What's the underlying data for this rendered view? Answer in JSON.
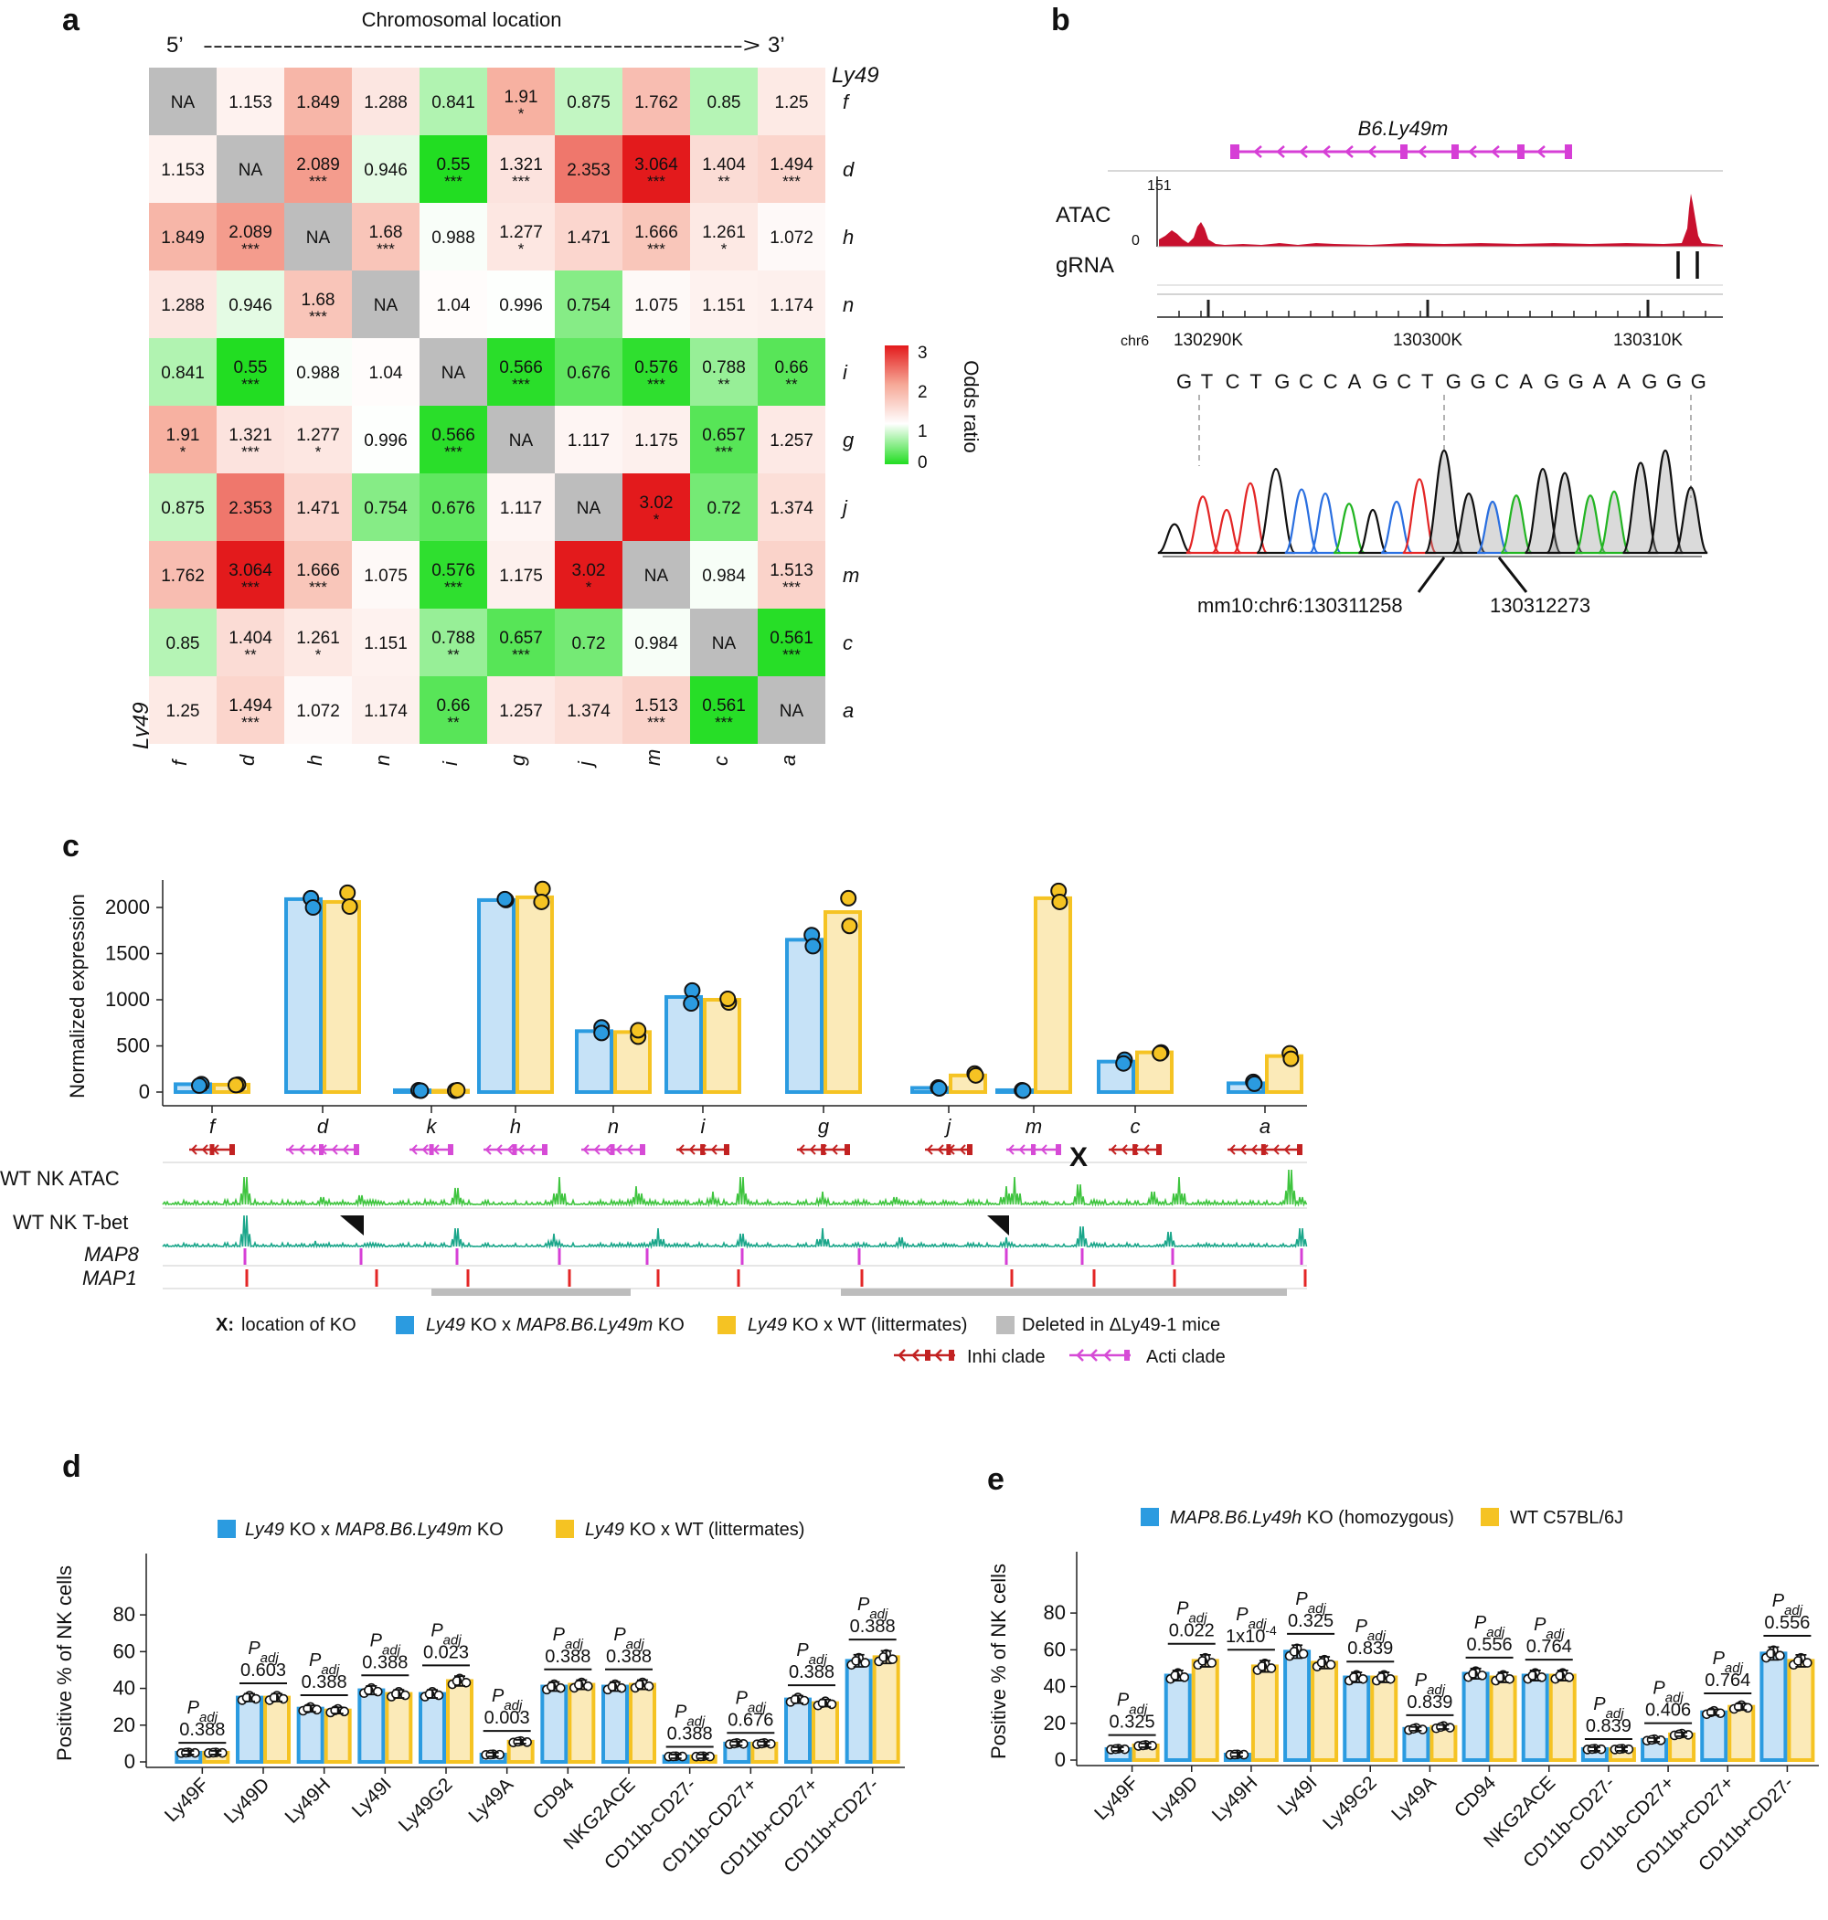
{
  "panels": {
    "a": "a",
    "b": "b",
    "c": "c",
    "d": "d",
    "e": "e"
  },
  "a": {
    "title": "Chromosomal location",
    "five": "5’",
    "three": "3’",
    "arrow": "------------------------------------------------------>",
    "axis_label": "Ly49",
    "genes": [
      "f",
      "d",
      "h",
      "n",
      "i",
      "g",
      "j",
      "m",
      "c",
      "a"
    ],
    "legend_title": "Odds ratio",
    "legend_ticks": [
      "3",
      "2",
      "1",
      "0"
    ],
    "na": "NA",
    "rows": [
      [
        [
          "NA",
          ""
        ],
        [
          "1.153",
          ""
        ],
        [
          "1.849",
          ""
        ],
        [
          "1.288",
          ""
        ],
        [
          "0.841",
          ""
        ],
        [
          "1.91",
          "*"
        ],
        [
          "0.875",
          ""
        ],
        [
          "1.762",
          ""
        ],
        [
          "0.85",
          ""
        ],
        [
          "1.25",
          ""
        ]
      ],
      [
        [
          "1.153",
          ""
        ],
        [
          "NA",
          ""
        ],
        [
          "2.089",
          "***"
        ],
        [
          "0.946",
          ""
        ],
        [
          "0.55",
          "***"
        ],
        [
          "1.321",
          "***"
        ],
        [
          "2.353",
          ""
        ],
        [
          "3.064",
          "***"
        ],
        [
          "1.404",
          "**"
        ],
        [
          "1.494",
          "***"
        ]
      ],
      [
        [
          "1.849",
          ""
        ],
        [
          "2.089",
          "***"
        ],
        [
          "NA",
          ""
        ],
        [
          "1.68",
          "***"
        ],
        [
          "0.988",
          ""
        ],
        [
          "1.277",
          "*"
        ],
        [
          "1.471",
          ""
        ],
        [
          "1.666",
          "***"
        ],
        [
          "1.261",
          "*"
        ],
        [
          "1.072",
          ""
        ]
      ],
      [
        [
          "1.288",
          ""
        ],
        [
          "0.946",
          ""
        ],
        [
          "1.68",
          "***"
        ],
        [
          "NA",
          ""
        ],
        [
          "1.04",
          ""
        ],
        [
          "0.996",
          ""
        ],
        [
          "0.754",
          ""
        ],
        [
          "1.075",
          ""
        ],
        [
          "1.151",
          ""
        ],
        [
          "1.174",
          ""
        ]
      ],
      [
        [
          "0.841",
          ""
        ],
        [
          "0.55",
          "***"
        ],
        [
          "0.988",
          ""
        ],
        [
          "1.04",
          ""
        ],
        [
          "NA",
          ""
        ],
        [
          "0.566",
          "***"
        ],
        [
          "0.676",
          ""
        ],
        [
          "0.576",
          "***"
        ],
        [
          "0.788",
          "**"
        ],
        [
          "0.66",
          "**"
        ]
      ],
      [
        [
          "1.91",
          "*"
        ],
        [
          "1.321",
          "***"
        ],
        [
          "1.277",
          "*"
        ],
        [
          "0.996",
          ""
        ],
        [
          "0.566",
          "***"
        ],
        [
          "NA",
          ""
        ],
        [
          "1.117",
          ""
        ],
        [
          "1.175",
          ""
        ],
        [
          "0.657",
          "***"
        ],
        [
          "1.257",
          ""
        ]
      ],
      [
        [
          "0.875",
          ""
        ],
        [
          "2.353",
          ""
        ],
        [
          "1.471",
          ""
        ],
        [
          "0.754",
          ""
        ],
        [
          "0.676",
          ""
        ],
        [
          "1.117",
          ""
        ],
        [
          "NA",
          ""
        ],
        [
          "3.02",
          "*"
        ],
        [
          "0.72",
          ""
        ],
        [
          "1.374",
          ""
        ]
      ],
      [
        [
          "1.762",
          ""
        ],
        [
          "3.064",
          "***"
        ],
        [
          "1.666",
          "***"
        ],
        [
          "1.075",
          ""
        ],
        [
          "0.576",
          "***"
        ],
        [
          "1.175",
          ""
        ],
        [
          "3.02",
          "*"
        ],
        [
          "NA",
          ""
        ],
        [
          "0.984",
          ""
        ],
        [
          "1.513",
          "***"
        ]
      ],
      [
        [
          "0.85",
          ""
        ],
        [
          "1.404",
          "**"
        ],
        [
          "1.261",
          "*"
        ],
        [
          "1.151",
          ""
        ],
        [
          "0.788",
          "**"
        ],
        [
          "0.657",
          "***"
        ],
        [
          "0.72",
          ""
        ],
        [
          "0.984",
          ""
        ],
        [
          "NA",
          ""
        ],
        [
          "0.561",
          "***"
        ]
      ],
      [
        [
          "1.25",
          ""
        ],
        [
          "1.494",
          "***"
        ],
        [
          "1.072",
          ""
        ],
        [
          "1.174",
          ""
        ],
        [
          "0.66",
          "**"
        ],
        [
          "1.257",
          ""
        ],
        [
          "1.374",
          ""
        ],
        [
          "1.513",
          "***"
        ],
        [
          "0.561",
          "***"
        ],
        [
          "NA",
          ""
        ]
      ]
    ]
  },
  "b": {
    "gene": "B6.Ly49m",
    "atac": "ATAC",
    "atac_max": "151",
    "atac_min": "0",
    "grna": "gRNA",
    "chr": "chr6",
    "coords": [
      "130290K",
      "130300K",
      "130310K"
    ],
    "sequence": [
      "G",
      "T",
      "C",
      "T",
      "G",
      "C",
      "C",
      "A",
      "G",
      "C",
      "T",
      "G",
      "G",
      "C",
      "A",
      "G",
      "G",
      "A",
      "A",
      "G",
      "G",
      "G"
    ],
    "label_left": "mm10:chr6:130311258",
    "label_right": "130312273"
  },
  "c": {
    "ylabel": "Normalized expression",
    "yticks": [
      "2000",
      "1500",
      "1000",
      "500",
      "0"
    ],
    "genes": [
      "f",
      "d",
      "k",
      "h",
      "n",
      "i",
      "g",
      "j",
      "m",
      "c",
      "a"
    ],
    "ko_values": [
      85,
      2090,
      20,
      2080,
      660,
      1030,
      1650,
      45,
      20,
      330,
      95
    ],
    "wt_values": [
      80,
      2060,
      15,
      2110,
      650,
      1000,
      1950,
      180,
      2100,
      430,
      390
    ],
    "tracks": [
      "WT NK  ATAC",
      "WT NK T-bet",
      "MAP8",
      "MAP1"
    ],
    "ko_marker": "X",
    "legend": {
      "x_label": "X:",
      "x_text": "location of KO",
      "ko_gene": "Ly49",
      "ko_text": " KO x ",
      "ko_map": "MAP8.B6.Ly49m",
      "ko_end": " KO",
      "wt_gene": "Ly49",
      "wt_text": " KO x WT (littermates)",
      "deleted": "Deleted in ΔLy49-1 mice",
      "inhi": "Inhi clade",
      "acti": "Acti clade"
    }
  },
  "d": {
    "ylabel": "Positive % of NK cells",
    "yticks": [
      "80",
      "60",
      "40",
      "20",
      "0"
    ],
    "legend_a_gene": "Ly49",
    "legend_a_mid": " KO x ",
    "legend_a_map": "MAP8.B6.Ly49m",
    "legend_a_end": " KO",
    "legend_b_gene": "Ly49",
    "legend_b_text": " KO x WT (littermates)",
    "padj_main": "P",
    "padj_sub": "adj",
    "categories": [
      "Ly49F",
      "Ly49D",
      "Ly49H",
      "Ly49I",
      "Ly49G2",
      "Ly49A",
      "CD94",
      "NKG2ACE",
      "CD11b-CD27-",
      "CD11b-CD27+",
      "CD11b+CD27+",
      "CD11b+CD27-"
    ],
    "ko": [
      5,
      35,
      29,
      39,
      37,
      4,
      41,
      41,
      3,
      10,
      34,
      55
    ],
    "wt": [
      5,
      35,
      28,
      37,
      44,
      11,
      42,
      42,
      3,
      10,
      32,
      57
    ],
    "padj": [
      "0.388",
      "0.603",
      "0.388",
      "0.388",
      "0.023",
      "0.003",
      "0.388",
      "0.388",
      "0.388",
      "0.676",
      "0.388",
      "0.388"
    ]
  },
  "e": {
    "ylabel": "Positive % of NK cells",
    "yticks": [
      "80",
      "60",
      "40",
      "20",
      "0"
    ],
    "legend_a_map": "MAP8.B6.Ly49h",
    "legend_a_end": " KO (homozygous)",
    "legend_b": "WT C57BL/6J",
    "padj_main": "P",
    "padj_sub": "adj",
    "categories": [
      "Ly49F",
      "Ly49D",
      "Ly49H",
      "Ly49I",
      "Ly49G2",
      "Ly49A",
      "CD94",
      "NKG2ACE",
      "CD11b-CD27-",
      "CD11b-CD27+",
      "CD11b+CD27+",
      "CD11b+CD27-"
    ],
    "ko": [
      6,
      46,
      3,
      59,
      45,
      17,
      47,
      46,
      6,
      11,
      26,
      58
    ],
    "wt": [
      8,
      54,
      51,
      53,
      45,
      18,
      45,
      46,
      6,
      14,
      29,
      54
    ],
    "padj": [
      "0.325",
      "0.022",
      "1x10",
      "0.325",
      "0.839",
      "0.839",
      "0.556",
      "0.764",
      "0.839",
      "0.406",
      "0.764",
      "0.556"
    ],
    "padj_exp": "-4"
  },
  "colors": {
    "ko": "#2b9be0",
    "ko_fill": "#c6e2f7",
    "wt": "#f5c323",
    "wt_fill": "#fbeab8",
    "red": "#e31a1c",
    "green": "#22dd22",
    "na": "#bdbdbd",
    "atac": "#3ec43e",
    "tbet": "#1aa68a",
    "map8": "#d63fd6",
    "map1": "#e32626",
    "acti": "#d64bd6",
    "inhi": "#c22222"
  }
}
